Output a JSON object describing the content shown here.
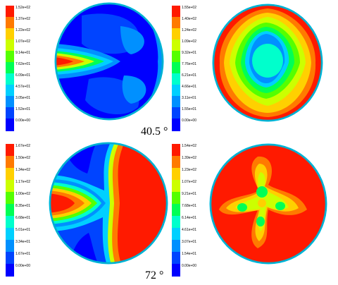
{
  "figure": {
    "captions": [
      "40.5 °",
      "72 °"
    ],
    "palette": [
      "#0000ff",
      "#0044ff",
      "#0090ff",
      "#00d0ff",
      "#00ffcc",
      "#00ff55",
      "#55ff00",
      "#ccff00",
      "#ffd000",
      "#ff7a00",
      "#ff1a00"
    ],
    "panels": [
      {
        "id": "panel-40-left",
        "legend_labels": [
          "1.52e+02",
          "1.37e+02",
          "1.22e+02",
          "1.07e+02",
          "9.14e+01",
          "7.62e+01",
          "6.09e+01",
          "4.57e+01",
          "3.05e+01",
          "1.52e+01",
          "0.00e+00"
        ]
      },
      {
        "id": "panel-40-right",
        "legend_labels": [
          "1.55e+02",
          "1.40e+02",
          "1.24e+02",
          "1.09e+02",
          "9.32e+01",
          "7.76e+01",
          "6.21e+01",
          "4.66e+01",
          "3.11e+01",
          "1.55e+01",
          "0.00e+00"
        ]
      },
      {
        "id": "panel-72-left",
        "legend_labels": [
          "1.67e+02",
          "1.50e+02",
          "1.34e+02",
          "1.17e+02",
          "1.00e+02",
          "8.35e+01",
          "6.68e+01",
          "5.01e+01",
          "3.34e+01",
          "1.67e+01",
          "0.00e+00"
        ]
      },
      {
        "id": "panel-72-right",
        "legend_labels": [
          "1.54e+02",
          "1.39e+02",
          "1.23e+02",
          "1.07e+02",
          "9.21e+01",
          "7.68e+01",
          "6.14e+01",
          "4.61e+01",
          "3.07e+01",
          "1.54e+01",
          "0.00e+00"
        ]
      }
    ]
  }
}
